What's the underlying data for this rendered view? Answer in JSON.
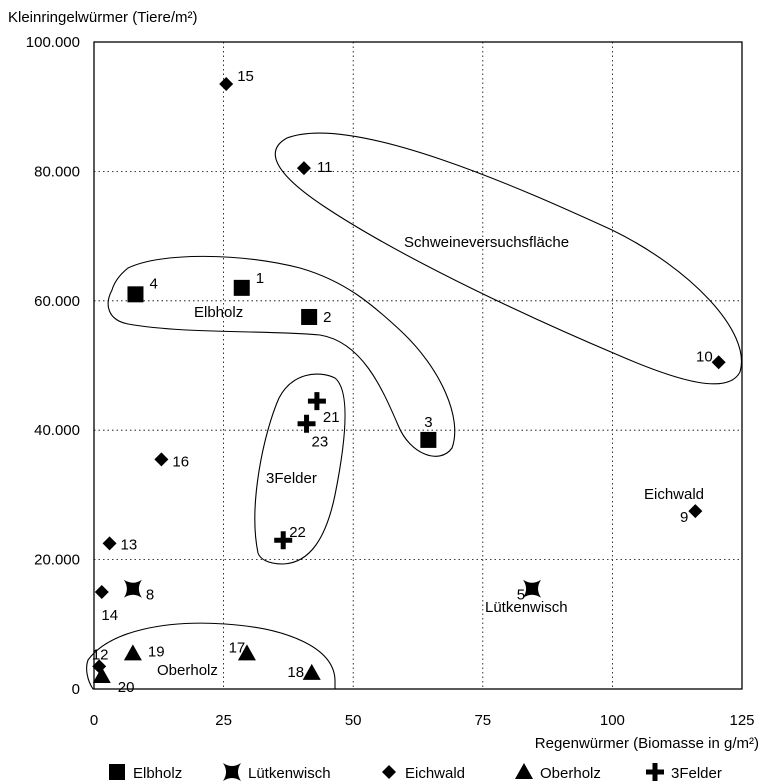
{
  "chart_data": {
    "type": "scatter",
    "xlabel": "Regenwürmer (Biomasse in g/m²)",
    "ylabel": "Kleinringelwürmer (Tiere/m²)",
    "xlim": [
      0,
      125
    ],
    "ylim": [
      0,
      100000
    ],
    "xticks": [
      0,
      25,
      50,
      75,
      100,
      125
    ],
    "xtick_labels": [
      "0",
      "25",
      "50",
      "75",
      "100",
      "125"
    ],
    "yticks": [
      0,
      20000,
      40000,
      60000,
      80000,
      100000
    ],
    "ytick_labels": [
      "0",
      "20.000",
      "40.000",
      "60.000",
      "80.000",
      "100.000"
    ],
    "grid": "dotted",
    "legend_position": "bottom",
    "series": [
      {
        "name": "Elbholz",
        "marker": "square",
        "points": [
          {
            "label": "1",
            "x": 28.5,
            "y": 62000
          },
          {
            "label": "2",
            "x": 41.5,
            "y": 57500
          },
          {
            "label": "3",
            "x": 64.5,
            "y": 38500
          },
          {
            "label": "4",
            "x": 8,
            "y": 61000
          }
        ]
      },
      {
        "name": "Lütkenwisch",
        "marker": "x",
        "points": [
          {
            "label": "5",
            "x": 84.5,
            "y": 15500
          },
          {
            "label": "8",
            "x": 7.5,
            "y": 15500
          }
        ]
      },
      {
        "name": "Eichwald",
        "marker": "diamond",
        "points": [
          {
            "label": "9",
            "x": 116,
            "y": 27500
          },
          {
            "label": "10",
            "x": 120.5,
            "y": 50500
          },
          {
            "label": "11",
            "x": 40.5,
            "y": 80500
          },
          {
            "label": "12",
            "x": 1,
            "y": 3500
          },
          {
            "label": "13",
            "x": 3,
            "y": 22500
          },
          {
            "label": "14",
            "x": 1.5,
            "y": 15000
          },
          {
            "label": "15",
            "x": 25.5,
            "y": 93500
          },
          {
            "label": "16",
            "x": 13,
            "y": 35500
          }
        ]
      },
      {
        "name": "Oberholz",
        "marker": "triangle",
        "points": [
          {
            "label": "17",
            "x": 29.5,
            "y": 5500
          },
          {
            "label": "18",
            "x": 42,
            "y": 2500
          },
          {
            "label": "19",
            "x": 7.5,
            "y": 5500
          },
          {
            "label": "20",
            "x": 1.5,
            "y": 2000
          }
        ]
      },
      {
        "name": "3Felder",
        "marker": "plus",
        "points": [
          {
            "label": "21",
            "x": 43,
            "y": 44500
          },
          {
            "label": "22",
            "x": 36.5,
            "y": 23000
          },
          {
            "label": "23",
            "x": 41,
            "y": 41000
          }
        ]
      }
    ],
    "annotations": [
      "Schweineversuchsfläche",
      "Elbholz",
      "3Felder",
      "Eichwald",
      "Lütkenwisch",
      "Oberholz"
    ]
  }
}
